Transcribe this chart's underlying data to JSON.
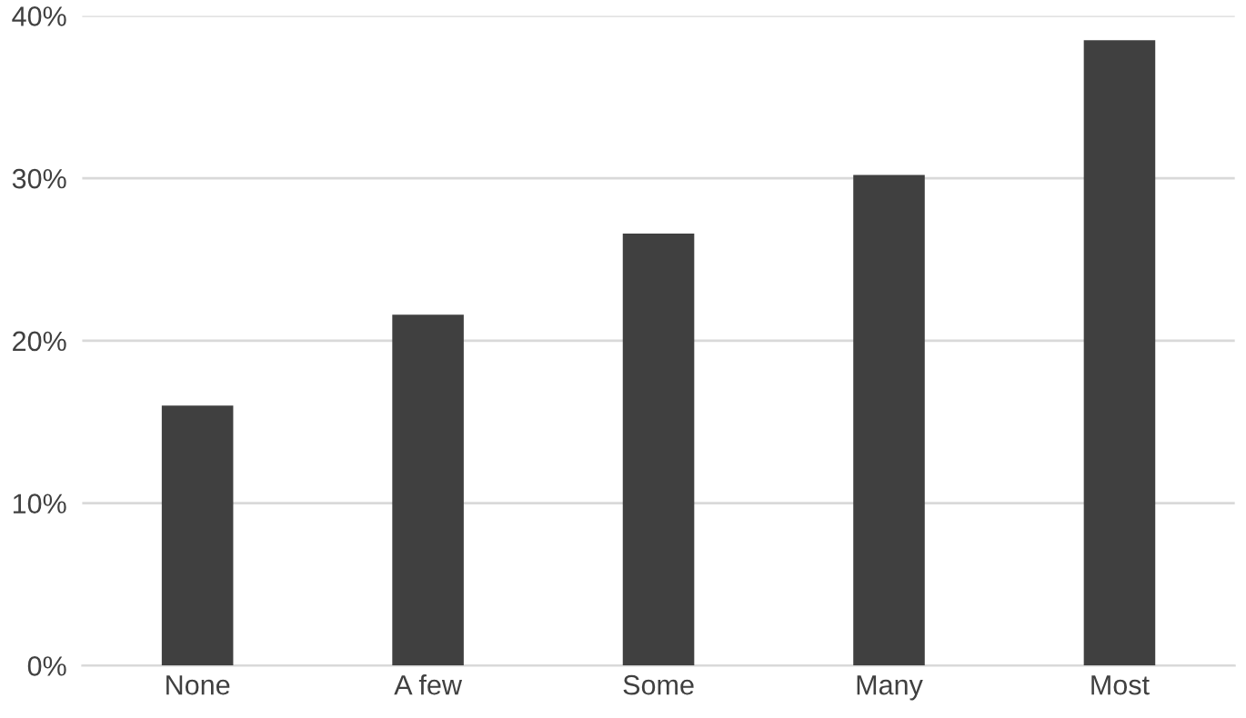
{
  "chart_data": {
    "type": "bar",
    "categories": [
      "None",
      "A few",
      "Some",
      "Many",
      "Most"
    ],
    "values": [
      16.0,
      21.6,
      26.6,
      30.2,
      38.5
    ],
    "color": "#404040",
    "ylim": [
      0,
      40
    ],
    "yticks": [
      {
        "value": 0,
        "label": "0%"
      },
      {
        "value": 10,
        "label": "10%"
      },
      {
        "value": 20,
        "label": "20%"
      },
      {
        "value": 30,
        "label": "30%"
      },
      {
        "value": 40,
        "label": "40%"
      }
    ],
    "grid": "y"
  }
}
